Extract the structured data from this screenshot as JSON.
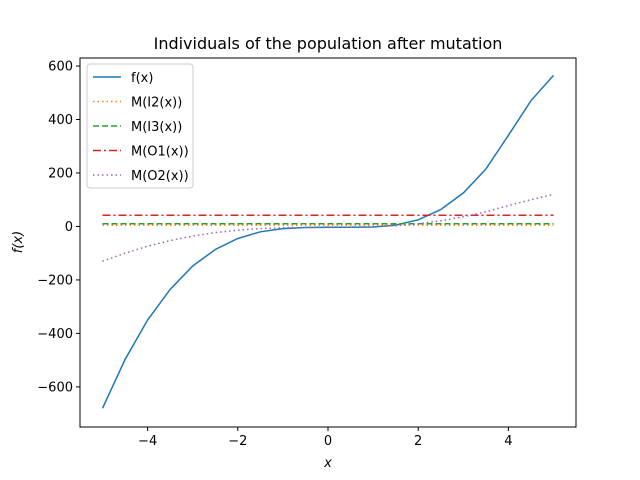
{
  "chart_data": {
    "type": "line",
    "title": "Individuals of the population after mutation",
    "xlabel": "x",
    "ylabel": "f(x)",
    "xlim": [
      -5.5,
      5.5
    ],
    "ylim": [
      -750,
      630
    ],
    "xticks": [
      -4,
      -2,
      0,
      2,
      4
    ],
    "xtick_labels": [
      "−4",
      "−2",
      "0",
      "2",
      "4"
    ],
    "yticks": [
      -600,
      -400,
      -200,
      0,
      200,
      400,
      600
    ],
    "ytick_labels": [
      "−600",
      "−400",
      "−200",
      "0",
      "200",
      "400",
      "600"
    ],
    "grid": false,
    "legend_position": "upper-left",
    "series": [
      {
        "name": "f(x)",
        "color": "#1f77b4",
        "style": "solid",
        "x": [
          -5,
          -4.5,
          -4,
          -3.5,
          -3,
          -2.5,
          -2,
          -1.5,
          -1,
          -0.5,
          0,
          0.5,
          1,
          1.5,
          2,
          2.5,
          3,
          3.5,
          4,
          4.5,
          5
        ],
        "y": [
          -680,
          -497,
          -350,
          -235,
          -148,
          -86,
          -45,
          -20,
          -8,
          -4,
          -3,
          -3,
          -2,
          5,
          25,
          63,
          125,
          214,
          341,
          470,
          565
        ]
      },
      {
        "name": "M(I2(x))",
        "color": "#ff7f0e",
        "style": "dotted",
        "x": [
          -5,
          5
        ],
        "y": [
          5,
          5
        ]
      },
      {
        "name": "M(I3(x))",
        "color": "#2ca02c",
        "style": "dashed",
        "x": [
          -5,
          5
        ],
        "y": [
          10,
          10
        ]
      },
      {
        "name": "M(O1(x))",
        "color": "#d62728",
        "style": "dashdot",
        "x": [
          -5,
          5
        ],
        "y": [
          42,
          42
        ]
      },
      {
        "name": "M(O2(x))",
        "color": "#9467bd",
        "style": "dotted",
        "x": [
          -5,
          -4.5,
          -4,
          -3.5,
          -3,
          -2.5,
          -2,
          -1.5,
          -1,
          -0.5,
          0,
          0.5,
          1,
          1.5,
          2,
          2.5,
          3,
          3.5,
          4,
          4.5,
          5
        ],
        "y": [
          -130,
          -100,
          -74,
          -53,
          -36,
          -23,
          -14,
          -8,
          -5,
          -4,
          -4,
          -3,
          -1,
          3,
          10,
          21,
          36,
          55,
          78,
          100,
          120
        ]
      }
    ]
  }
}
